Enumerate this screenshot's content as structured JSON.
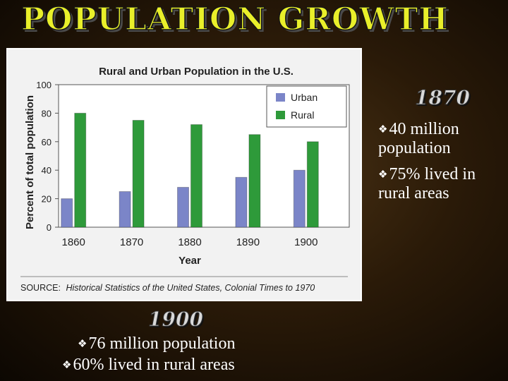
{
  "slide": {
    "title": "POPULATION GROWTH",
    "heading_1870": "1870",
    "bullets_1870": [
      "40 million population",
      "75%  lived in rural areas"
    ],
    "heading_1900": "1900",
    "bullets_1900": [
      "76 million population",
      "60% lived in rural areas"
    ],
    "bullet_icon": "diamond-bullet-icon"
  },
  "chart_data": {
    "type": "bar",
    "title": "Rural and Urban Population in the U.S.",
    "xlabel": "Year",
    "ylabel": "Percent of total population",
    "categories": [
      "1860",
      "1870",
      "1880",
      "1890",
      "1900"
    ],
    "series": [
      {
        "name": "Urban",
        "color": "#7b85c8",
        "values": [
          20,
          25,
          28,
          35,
          40
        ]
      },
      {
        "name": "Rural",
        "color": "#2e9a3a",
        "values": [
          80,
          75,
          72,
          65,
          60
        ]
      }
    ],
    "ylim": [
      0,
      100
    ],
    "yticks": [
      0,
      20,
      40,
      60,
      80,
      100
    ],
    "grid": false,
    "legend": "top-right",
    "source_label": "SOURCE:",
    "source_text": "Historical Statistics of the United States, Colonial Times to 1970"
  }
}
